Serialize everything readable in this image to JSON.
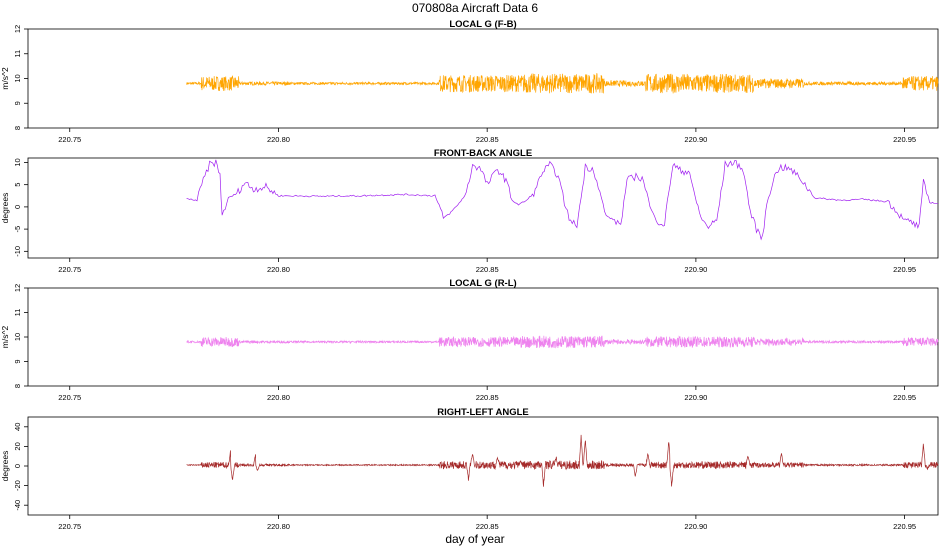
{
  "title": "070808a   Aircraft Data 6",
  "xlabel": "day of year",
  "chart_data": [
    {
      "type": "line",
      "title": "LOCAL G (F-B)",
      "ylabel": "m/s^2",
      "color": "#FFA500",
      "xlim": [
        220.74,
        220.958
      ],
      "ylim": [
        8.0,
        12.0
      ],
      "xticks": [
        "220.75",
        "220.80",
        "220.85",
        "220.90",
        "220.95"
      ],
      "yticks": [
        "8",
        "9",
        "10",
        "11",
        "12"
      ],
      "x_start": 220.778,
      "x_end": 220.958,
      "baseline": 9.8,
      "noise_bands": [
        {
          "x": [
            220.778,
            220.7815
          ],
          "amp": 0.05
        },
        {
          "x": [
            220.7815,
            220.7905
          ],
          "amp": 0.3
        },
        {
          "x": [
            220.7905,
            220.8025
          ],
          "amp": 0.07
        },
        {
          "x": [
            220.8025,
            220.8385
          ],
          "amp": 0.05
        },
        {
          "x": [
            220.8385,
            220.8585
          ],
          "amp": 0.35
        },
        {
          "x": [
            220.8585,
            220.878
          ],
          "amp": 0.4
        },
        {
          "x": [
            220.878,
            220.888
          ],
          "amp": 0.12
        },
        {
          "x": [
            220.888,
            220.898
          ],
          "amp": 0.4
        },
        {
          "x": [
            220.898,
            220.914
          ],
          "amp": 0.38
        },
        {
          "x": [
            220.914,
            220.926
          ],
          "amp": 0.2
        },
        {
          "x": [
            220.926,
            220.9495
          ],
          "amp": 0.07
        },
        {
          "x": [
            220.9495,
            220.958
          ],
          "amp": 0.3
        }
      ]
    },
    {
      "type": "line",
      "title": "FRONT-BACK ANGLE",
      "ylabel": "degrees",
      "color": "#A020F0",
      "xlim": [
        220.74,
        220.958
      ],
      "ylim": [
        -11.5,
        11.0
      ],
      "xticks": [
        "220.75",
        "220.80",
        "220.85",
        "220.90",
        "220.95"
      ],
      "yticks": [
        "-10",
        "-5",
        "0",
        "5",
        "10"
      ],
      "x_start": 220.778,
      "x_end": 220.958,
      "points": [
        [
          220.778,
          1.8
        ],
        [
          220.7805,
          1.5
        ],
        [
          220.782,
          6
        ],
        [
          220.7835,
          9.5
        ],
        [
          220.785,
          10
        ],
        [
          220.786,
          7
        ],
        [
          220.7865,
          -2
        ],
        [
          220.788,
          2
        ],
        [
          220.79,
          3
        ],
        [
          220.792,
          5.5
        ],
        [
          220.794,
          4
        ],
        [
          220.797,
          4.5
        ],
        [
          220.8,
          2.5
        ],
        [
          220.81,
          2.4
        ],
        [
          220.82,
          2.5
        ],
        [
          220.83,
          2.8
        ],
        [
          220.8375,
          2.5
        ],
        [
          220.8395,
          -2.5
        ],
        [
          220.841,
          -1.5
        ],
        [
          220.843,
          0.5
        ],
        [
          220.845,
          3
        ],
        [
          220.8465,
          9.5
        ],
        [
          220.8485,
          8.5
        ],
        [
          220.85,
          5
        ],
        [
          220.8525,
          8.5
        ],
        [
          220.8545,
          6
        ],
        [
          220.856,
          1.5
        ],
        [
          220.8575,
          0.5
        ],
        [
          220.8595,
          1.5
        ],
        [
          220.8615,
          3.5
        ],
        [
          220.863,
          7.5
        ],
        [
          220.865,
          9.5
        ],
        [
          220.867,
          7
        ],
        [
          220.8685,
          1
        ],
        [
          220.87,
          -3.5
        ],
        [
          220.8715,
          -4
        ],
        [
          220.8725,
          2
        ],
        [
          220.8735,
          9
        ],
        [
          220.8755,
          8.5
        ],
        [
          220.877,
          3
        ],
        [
          220.8785,
          -2
        ],
        [
          220.8805,
          -3
        ],
        [
          220.882,
          -4
        ],
        [
          220.8835,
          6
        ],
        [
          220.886,
          7
        ],
        [
          220.8875,
          6
        ],
        [
          220.889,
          0
        ],
        [
          220.8905,
          -3
        ],
        [
          220.8925,
          -4
        ],
        [
          220.8935,
          3.5
        ],
        [
          220.8945,
          9.5
        ],
        [
          220.8965,
          8
        ],
        [
          220.8985,
          8
        ],
        [
          220.8995,
          3
        ],
        [
          220.9015,
          -3
        ],
        [
          220.903,
          -4.5
        ],
        [
          220.905,
          -3
        ],
        [
          220.906,
          3
        ],
        [
          220.907,
          9.5
        ],
        [
          220.909,
          10
        ],
        [
          220.911,
          9
        ],
        [
          220.912,
          5
        ],
        [
          220.913,
          -1
        ],
        [
          220.9145,
          -5
        ],
        [
          220.916,
          -7
        ],
        [
          220.917,
          1
        ],
        [
          220.9185,
          6
        ],
        [
          220.92,
          9
        ],
        [
          220.9225,
          8.5
        ],
        [
          220.925,
          6.5
        ],
        [
          220.9265,
          4.5
        ],
        [
          220.9285,
          2
        ],
        [
          220.935,
          1.5
        ],
        [
          220.94,
          1.7
        ],
        [
          220.946,
          1.2
        ],
        [
          220.9495,
          -2.5
        ],
        [
          220.9515,
          -3.5
        ],
        [
          220.9535,
          -4.5
        ],
        [
          220.9545,
          5.5
        ],
        [
          220.956,
          1
        ],
        [
          220.958,
          0.8
        ]
      ]
    },
    {
      "type": "line",
      "title": "LOCAL G (R-L)",
      "ylabel": "m/s^2",
      "color": "#EE82EE",
      "xlim": [
        220.74,
        220.958
      ],
      "ylim": [
        8.0,
        12.0
      ],
      "xticks": [
        "220.75",
        "220.80",
        "220.85",
        "220.90",
        "220.95"
      ],
      "yticks": [
        "8",
        "9",
        "10",
        "11",
        "12"
      ],
      "x_start": 220.778,
      "x_end": 220.958,
      "baseline": 9.8,
      "noise_bands": [
        {
          "x": [
            220.778,
            220.7815
          ],
          "amp": 0.04
        },
        {
          "x": [
            220.7815,
            220.7905
          ],
          "amp": 0.2
        },
        {
          "x": [
            220.7905,
            220.8025
          ],
          "amp": 0.05
        },
        {
          "x": [
            220.8025,
            220.8385
          ],
          "amp": 0.04
        },
        {
          "x": [
            220.8385,
            220.858
          ],
          "amp": 0.2
        },
        {
          "x": [
            220.858,
            220.878
          ],
          "amp": 0.25
        },
        {
          "x": [
            220.878,
            220.888
          ],
          "amp": 0.1
        },
        {
          "x": [
            220.888,
            220.914
          ],
          "amp": 0.22
        },
        {
          "x": [
            220.914,
            220.926
          ],
          "amp": 0.15
        },
        {
          "x": [
            220.926,
            220.9495
          ],
          "amp": 0.05
        },
        {
          "x": [
            220.9495,
            220.958
          ],
          "amp": 0.18
        }
      ]
    },
    {
      "type": "line",
      "title": "RIGHT-LEFT ANGLE",
      "ylabel": "degrees",
      "color": "#A52A2A",
      "xlim": [
        220.74,
        220.958
      ],
      "ylim": [
        -50,
        50
      ],
      "xticks": [
        "220.75",
        "220.80",
        "220.85",
        "220.90",
        "220.95"
      ],
      "yticks": [
        "-40",
        "-20",
        "0",
        "20",
        "40"
      ],
      "x_start": 220.778,
      "x_end": 220.958,
      "baseline": 1,
      "noise_bands": [
        {
          "x": [
            220.778,
            220.7815
          ],
          "amp": 0.5
        },
        {
          "x": [
            220.7815,
            220.7905
          ],
          "amp": 3
        },
        {
          "x": [
            220.7905,
            220.8025
          ],
          "amp": 1.2
        },
        {
          "x": [
            220.8025,
            220.8385
          ],
          "amp": 0.6
        },
        {
          "x": [
            220.8385,
            220.858
          ],
          "amp": 4
        },
        {
          "x": [
            220.858,
            220.878
          ],
          "amp": 4.5
        },
        {
          "x": [
            220.878,
            220.888
          ],
          "amp": 1.5
        },
        {
          "x": [
            220.888,
            220.914
          ],
          "amp": 3.5
        },
        {
          "x": [
            220.914,
            220.926
          ],
          "amp": 2.5
        },
        {
          "x": [
            220.926,
            220.9495
          ],
          "amp": 0.8
        },
        {
          "x": [
            220.9495,
            220.958
          ],
          "amp": 3
        }
      ],
      "spikes": [
        [
          220.7885,
          14
        ],
        [
          220.789,
          -16
        ],
        [
          220.7945,
          11
        ],
        [
          220.795,
          -6
        ],
        [
          220.8455,
          -14
        ],
        [
          220.8465,
          12
        ],
        [
          220.8525,
          8
        ],
        [
          220.858,
          5
        ],
        [
          220.8635,
          -20
        ],
        [
          220.8665,
          8
        ],
        [
          220.8725,
          30
        ],
        [
          220.8735,
          27
        ],
        [
          220.8855,
          -12
        ],
        [
          220.8885,
          12
        ],
        [
          220.8935,
          24
        ],
        [
          220.8942,
          -22
        ],
        [
          220.9125,
          10
        ],
        [
          220.9205,
          13
        ],
        [
          220.9545,
          22
        ],
        [
          220.9555,
          -4
        ]
      ]
    }
  ]
}
